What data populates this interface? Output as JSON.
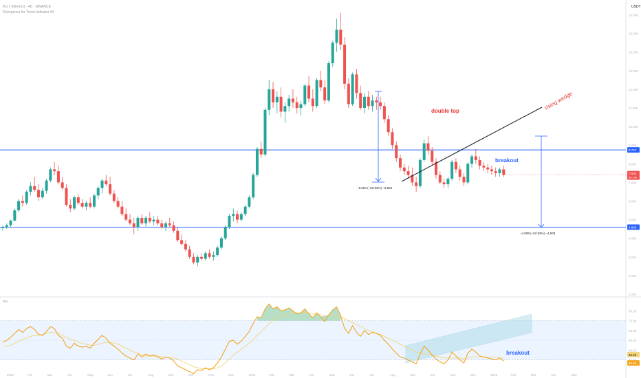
{
  "header": {
    "line1": "INJ / Tether(U) · 4D · BINANCE",
    "line2": "Divergence for Trend Indicator 44"
  },
  "currency": "USDT",
  "colors": {
    "up": "#26a69a",
    "down": "#ef5350",
    "level": "#2962ff",
    "annotation": "#e53935",
    "rsi": "#f5a623",
    "rsi_ma": "#f2d47a",
    "band": "#e3efff",
    "channel": "#a8d8e8"
  },
  "price_axis_labels": [
    "16.000",
    "15.000",
    "14.000",
    "13.000",
    "12.000",
    "11.000",
    "10.000",
    "9.000",
    "8.000",
    "7.000",
    "6.000",
    "5.000",
    "4.000",
    "3.000",
    "2.000",
    "1.000"
  ],
  "price_levels": {
    "upper_label": "8.747",
    "lower_label": "4.600",
    "current_label": "7.634",
    "current_sub": "3d 14h"
  },
  "annotations": {
    "double_top": "double top",
    "rising_wedge": "rising wedge",
    "breakout_price": "breakout",
    "breakout_rsi": "breakout",
    "measure_left": "−6.554 (−52.93%) −6,554",
    "measure_right": "−4.508 (−52.93%) −4,508"
  },
  "rsi_panel": {
    "label": "RSI",
    "axis_labels": [
      "80.00",
      "70.00",
      "60.00",
      "50.00",
      "40.00",
      "30.00"
    ],
    "current_labels": [
      "45.25",
      "42.46"
    ]
  },
  "time_axis_labels": [
    "2023",
    "Feb",
    "Mar",
    "Apr",
    "May",
    "Jun",
    "Jul",
    "Aug",
    "Sep",
    "Oct",
    "Nov",
    "Dec",
    "2024",
    "Feb",
    "Mar",
    "Apr",
    "May",
    "Jun",
    "Jul",
    "Aug",
    "Sep",
    "Oct",
    "Nov",
    "Dec",
    "2025",
    "Feb",
    "Mar",
    "Apr",
    "May"
  ],
  "chart_data": {
    "type": "candlestick",
    "title": "INJ / Tether(U) · 4D · BINANCE",
    "ylabel": "USDT",
    "y_scale": "linear",
    "ylim": [
      1.0,
      16.5
    ],
    "price_levels": [
      8.747,
      4.6
    ],
    "candles_ohlc": [
      [
        4.55,
        4.7,
        4.4,
        4.6
      ],
      [
        4.6,
        4.8,
        4.5,
        4.7
      ],
      [
        4.7,
        5.0,
        4.6,
        4.95
      ],
      [
        4.95,
        5.6,
        4.9,
        5.5
      ],
      [
        5.5,
        6.1,
        5.4,
        6.0
      ],
      [
        6.0,
        6.3,
        5.7,
        5.9
      ],
      [
        5.9,
        6.6,
        5.8,
        6.5
      ],
      [
        6.5,
        7.0,
        6.3,
        6.8
      ],
      [
        6.8,
        7.3,
        6.5,
        6.6
      ],
      [
        6.6,
        6.9,
        6.0,
        6.2
      ],
      [
        6.2,
        6.7,
        6.1,
        6.55
      ],
      [
        6.55,
        7.2,
        6.4,
        7.1
      ],
      [
        7.1,
        7.8,
        7.0,
        7.7
      ],
      [
        7.7,
        8.1,
        7.4,
        7.6
      ],
      [
        7.6,
        7.9,
        6.9,
        7.0
      ],
      [
        7.0,
        7.3,
        6.6,
        6.7
      ],
      [
        6.7,
        6.9,
        5.7,
        5.8
      ],
      [
        5.8,
        6.1,
        5.4,
        5.6
      ],
      [
        5.6,
        6.3,
        5.5,
        6.2
      ],
      [
        6.2,
        6.4,
        5.8,
        5.9
      ],
      [
        5.9,
        6.1,
        5.6,
        5.7
      ],
      [
        5.7,
        6.0,
        5.5,
        5.9
      ],
      [
        5.9,
        6.2,
        5.6,
        5.7
      ],
      [
        5.7,
        6.4,
        5.6,
        6.3
      ],
      [
        6.3,
        6.8,
        6.1,
        6.7
      ],
      [
        6.7,
        7.2,
        6.4,
        7.1
      ],
      [
        7.1,
        7.4,
        6.8,
        6.9
      ],
      [
        6.9,
        7.3,
        6.3,
        6.4
      ],
      [
        6.4,
        6.6,
        5.9,
        6.0
      ],
      [
        6.0,
        6.2,
        5.6,
        5.7
      ],
      [
        5.7,
        6.0,
        5.2,
        5.3
      ],
      [
        5.3,
        5.6,
        4.9,
        5.0
      ],
      [
        5.0,
        5.3,
        4.7,
        4.8
      ],
      [
        4.8,
        5.1,
        4.2,
        4.6
      ],
      [
        4.6,
        5.2,
        4.4,
        5.1
      ],
      [
        5.1,
        5.3,
        4.7,
        4.8
      ],
      [
        4.8,
        5.2,
        4.6,
        5.1
      ],
      [
        5.1,
        5.4,
        4.8,
        4.9
      ],
      [
        4.9,
        5.2,
        4.7,
        5.0
      ],
      [
        5.0,
        5.2,
        4.7,
        4.8
      ],
      [
        4.8,
        5.0,
        4.5,
        4.6
      ],
      [
        4.6,
        4.9,
        4.4,
        4.8
      ],
      [
        4.8,
        5.1,
        4.6,
        4.7
      ],
      [
        4.7,
        4.9,
        4.3,
        4.4
      ],
      [
        4.4,
        4.6,
        3.8,
        3.9
      ],
      [
        3.9,
        4.2,
        3.6,
        3.7
      ],
      [
        3.7,
        3.9,
        3.3,
        3.4
      ],
      [
        3.4,
        3.6,
        2.9,
        3.0
      ],
      [
        3.0,
        3.2,
        2.6,
        2.7
      ],
      [
        2.7,
        3.1,
        2.5,
        3.0
      ],
      [
        3.0,
        3.2,
        2.8,
        2.9
      ],
      [
        2.9,
        3.3,
        2.8,
        3.2
      ],
      [
        3.2,
        3.4,
        2.9,
        3.0
      ],
      [
        3.0,
        3.3,
        2.8,
        3.1
      ],
      [
        3.1,
        3.6,
        3.0,
        3.5
      ],
      [
        3.5,
        4.1,
        3.4,
        4.0
      ],
      [
        4.0,
        4.7,
        3.9,
        4.6
      ],
      [
        4.6,
        5.3,
        4.5,
        5.2
      ],
      [
        5.2,
        5.6,
        4.9,
        5.3
      ],
      [
        5.3,
        5.5,
        4.8,
        5.0
      ],
      [
        5.0,
        5.4,
        4.9,
        5.3
      ],
      [
        5.3,
        5.8,
        5.2,
        5.7
      ],
      [
        5.7,
        6.3,
        5.6,
        6.2
      ],
      [
        6.2,
        7.5,
        6.1,
        7.4
      ],
      [
        7.4,
        8.9,
        7.3,
        8.8
      ],
      [
        8.8,
        9.2,
        8.3,
        8.5
      ],
      [
        8.5,
        11.0,
        8.4,
        10.9
      ],
      [
        10.9,
        12.5,
        10.6,
        12.0
      ],
      [
        12.0,
        12.4,
        11.0,
        11.3
      ],
      [
        11.3,
        11.9,
        10.7,
        11.6
      ],
      [
        11.6,
        12.1,
        10.5,
        10.8
      ],
      [
        10.8,
        11.3,
        10.2,
        11.1
      ],
      [
        11.1,
        11.7,
        10.8,
        11.5
      ],
      [
        11.5,
        12.0,
        11.0,
        11.3
      ],
      [
        11.3,
        11.6,
        10.7,
        11.0
      ],
      [
        11.0,
        11.4,
        10.6,
        11.2
      ],
      [
        11.2,
        12.3,
        11.1,
        12.2
      ],
      [
        12.2,
        12.7,
        11.3,
        11.5
      ],
      [
        11.5,
        12.0,
        10.8,
        11.1
      ],
      [
        11.1,
        12.6,
        11.0,
        12.5
      ],
      [
        12.5,
        13.0,
        11.9,
        12.1
      ],
      [
        12.1,
        12.5,
        11.2,
        11.4
      ],
      [
        11.4,
        13.5,
        11.3,
        13.4
      ],
      [
        13.4,
        14.6,
        13.2,
        14.5
      ],
      [
        14.5,
        15.8,
        14.0,
        15.2
      ],
      [
        15.2,
        16.1,
        14.1,
        14.4
      ],
      [
        14.4,
        14.8,
        12.0,
        12.3
      ],
      [
        12.3,
        12.6,
        11.0,
        11.2
      ],
      [
        11.2,
        12.9,
        11.1,
        12.8
      ],
      [
        12.8,
        13.1,
        11.5,
        11.8
      ],
      [
        11.8,
        12.2,
        10.9,
        11.0
      ],
      [
        11.0,
        11.8,
        10.7,
        11.6
      ],
      [
        11.6,
        11.9,
        10.9,
        11.1
      ],
      [
        11.1,
        11.7,
        10.8,
        11.4
      ],
      [
        11.4,
        11.6,
        10.9,
        11.3
      ],
      [
        11.3,
        11.6,
        10.9,
        11.1
      ],
      [
        11.1,
        11.3,
        10.2,
        10.4
      ],
      [
        10.4,
        10.6,
        9.5,
        9.7
      ],
      [
        9.7,
        9.9,
        8.8,
        9.0
      ],
      [
        9.0,
        9.2,
        8.1,
        8.3
      ],
      [
        8.3,
        8.5,
        7.6,
        7.8
      ],
      [
        7.8,
        8.0,
        7.4,
        7.6
      ],
      [
        7.6,
        7.9,
        7.2,
        7.4
      ],
      [
        7.4,
        7.8,
        6.8,
        7.0
      ],
      [
        7.0,
        7.3,
        6.5,
        6.8
      ],
      [
        6.8,
        8.3,
        6.7,
        8.2
      ],
      [
        8.2,
        9.3,
        8.1,
        9.1
      ],
      [
        9.1,
        9.5,
        8.5,
        8.7
      ],
      [
        8.7,
        8.9,
        7.9,
        8.1
      ],
      [
        8.1,
        8.3,
        7.2,
        7.4
      ],
      [
        7.4,
        7.6,
        6.9,
        7.0
      ],
      [
        7.0,
        7.2,
        6.7,
        6.9
      ],
      [
        6.9,
        7.3,
        6.7,
        7.2
      ],
      [
        7.2,
        8.2,
        7.1,
        8.1
      ],
      [
        8.1,
        8.3,
        7.5,
        7.7
      ],
      [
        7.7,
        7.9,
        7.1,
        7.3
      ],
      [
        7.3,
        7.5,
        6.8,
        7.0
      ],
      [
        7.0,
        8.1,
        6.9,
        8.0
      ],
      [
        8.0,
        8.5,
        7.8,
        8.4
      ],
      [
        8.4,
        8.8,
        8.0,
        8.2
      ],
      [
        8.2,
        8.4,
        7.7,
        7.9
      ],
      [
        7.9,
        8.1,
        7.6,
        7.8
      ],
      [
        7.8,
        8.0,
        7.5,
        7.7
      ],
      [
        7.7,
        7.9,
        7.4,
        7.6
      ],
      [
        7.6,
        7.8,
        7.3,
        7.5
      ],
      [
        7.5,
        7.8,
        7.3,
        7.7
      ],
      [
        7.7,
        7.9,
        7.3,
        7.4
      ]
    ],
    "rsi": [
      {
        "name": "RSI",
        "values": [
          48,
          50,
          53,
          57,
          61,
          58,
          62,
          64,
          61,
          56,
          55,
          59,
          64,
          62,
          55,
          52,
          44,
          42,
          47,
          44,
          43,
          44,
          42,
          47,
          51,
          55,
          52,
          47,
          44,
          41,
          37,
          34,
          32,
          30,
          36,
          33,
          36,
          34,
          35,
          33,
          31,
          33,
          32,
          29,
          24,
          22,
          20,
          18,
          16,
          20,
          19,
          22,
          20,
          22,
          27,
          33,
          41,
          49,
          50,
          46,
          49,
          54,
          59,
          67,
          74,
          73,
          82,
          87,
          82,
          84,
          80,
          81,
          83,
          80,
          77,
          78,
          82,
          77,
          73,
          78,
          74,
          69,
          76,
          81,
          84,
          75,
          62,
          57,
          65,
          58,
          54,
          60,
          56,
          58,
          57,
          55,
          50,
          46,
          41,
          37,
          33,
          32,
          30,
          28,
          26,
          36,
          44,
          40,
          35,
          31,
          28,
          26,
          30,
          38,
          34,
          30,
          27,
          37,
          41,
          38,
          34,
          33,
          32,
          31,
          30,
          32,
          29
        ]
      },
      {
        "name": "RSI MA",
        "values": [
          44,
          44,
          45,
          47,
          49,
          51,
          52,
          54,
          55,
          55,
          56,
          57,
          58,
          58,
          57,
          55,
          53,
          51,
          50,
          48,
          47,
          46,
          45,
          45,
          46,
          47,
          48,
          48,
          47,
          46,
          44,
          42,
          40,
          38,
          37,
          35,
          34,
          34,
          34,
          34,
          33,
          33,
          32,
          32,
          31,
          29,
          27,
          25,
          23,
          22,
          21,
          21,
          21,
          21,
          22,
          24,
          27,
          31,
          35,
          38,
          41,
          44,
          47,
          51,
          55,
          59,
          63,
          67,
          70,
          73,
          75,
          76,
          77,
          78,
          78,
          78,
          78,
          78,
          77,
          77,
          76,
          75,
          75,
          75,
          75,
          74,
          72,
          70,
          68,
          66,
          64,
          62,
          60,
          59,
          57,
          56,
          54,
          52,
          50,
          48,
          46,
          44,
          42,
          40,
          38,
          37,
          36,
          36,
          35,
          34,
          33,
          32,
          32,
          32,
          32,
          32,
          31,
          32,
          33,
          33,
          33,
          33,
          33,
          33,
          33,
          32,
          32
        ]
      }
    ],
    "rsi_ylim": [
      20,
      90
    ],
    "rsi_bands": [
      30,
      70
    ]
  }
}
